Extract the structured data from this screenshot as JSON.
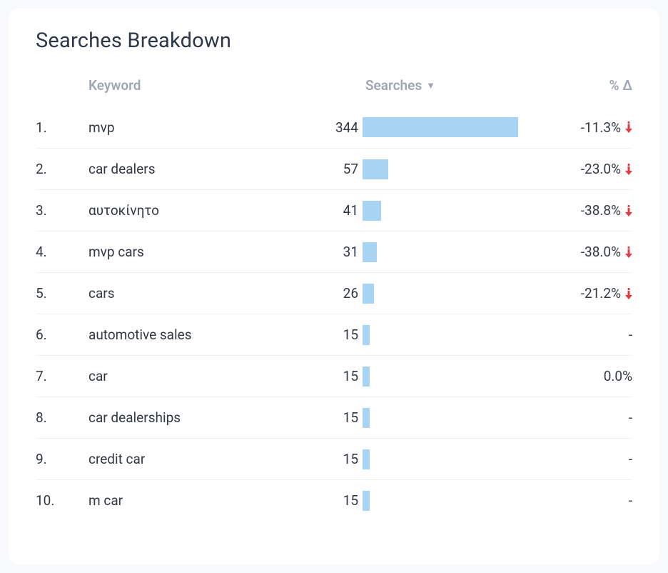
{
  "title": "Searches Breakdown",
  "columns": {
    "rank": "",
    "keyword": "Keyword",
    "searches": "Searches",
    "delta": "% Δ"
  },
  "sort": {
    "column": "searches",
    "direction": "desc"
  },
  "bar": {
    "color": "#a6d4f2",
    "max_value": 344
  },
  "colors": {
    "page_bg": "#f7f9fc",
    "card_bg": "#ffffff",
    "text": "#333942",
    "header_text": "#9fa6b5",
    "border": "#edf0f5",
    "arrow_down": "#e63946"
  },
  "rows": [
    {
      "rank": "1.",
      "keyword": "mvp",
      "searches": 344,
      "delta": "-11.3%",
      "trend": "down"
    },
    {
      "rank": "2.",
      "keyword": "car dealers",
      "searches": 57,
      "delta": "-23.0%",
      "trend": "down"
    },
    {
      "rank": "3.",
      "keyword": "αυτοκίνητο",
      "searches": 41,
      "delta": "-38.8%",
      "trend": "down"
    },
    {
      "rank": "4.",
      "keyword": "mvp cars",
      "searches": 31,
      "delta": "-38.0%",
      "trend": "down"
    },
    {
      "rank": "5.",
      "keyword": "cars",
      "searches": 26,
      "delta": "-21.2%",
      "trend": "down"
    },
    {
      "rank": "6.",
      "keyword": "automotive sales",
      "searches": 15,
      "delta": "-",
      "trend": "none"
    },
    {
      "rank": "7.",
      "keyword": "car",
      "searches": 15,
      "delta": "0.0%",
      "trend": "flat"
    },
    {
      "rank": "8.",
      "keyword": "car dealerships",
      "searches": 15,
      "delta": "-",
      "trend": "none"
    },
    {
      "rank": "9.",
      "keyword": "credit car",
      "searches": 15,
      "delta": "-",
      "trend": "none"
    },
    {
      "rank": "10.",
      "keyword": "m car",
      "searches": 15,
      "delta": "-",
      "trend": "none"
    }
  ]
}
